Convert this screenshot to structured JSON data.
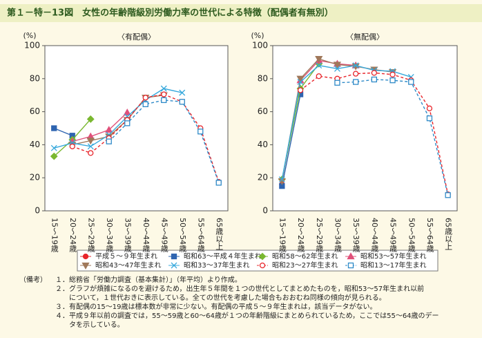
{
  "header": {
    "title": "第１－特－13図　女性の年齢階級別労働力率の世代による特徴（配偶者有無別）"
  },
  "chart_data": [
    {
      "type": "line",
      "title": "〈有配偶〉",
      "y_label": "(%)",
      "categories": [
        "15～19歳",
        "20～24歳",
        "25～29歳",
        "30～34歳",
        "35～39歳",
        "40～44歳",
        "45～49歳",
        "50～54歳",
        "55～64歳",
        "65歳以上"
      ],
      "ylim": [
        0,
        100
      ],
      "yticks": [
        0,
        20,
        40,
        60,
        80,
        100
      ],
      "series": [
        {
          "name": "平成５～９年生まれ",
          "color": "#e8242a",
          "marker": "dot",
          "dash": false,
          "values": [
            null,
            null,
            null,
            null,
            null,
            null,
            null,
            null,
            null,
            null
          ]
        },
        {
          "name": "昭和63～平成４年生まれ",
          "color": "#2e64b0",
          "marker": "square",
          "dash": false,
          "values": [
            50,
            45.5,
            null,
            null,
            null,
            null,
            null,
            null,
            null,
            null
          ]
        },
        {
          "name": "昭和58～62年生まれ",
          "color": "#7ab830",
          "marker": "diamond",
          "dash": false,
          "values": [
            33,
            43,
            55.5,
            null,
            null,
            null,
            null,
            null,
            null,
            null
          ]
        },
        {
          "name": "昭和53～57年生まれ",
          "color": "#e0507a",
          "marker": "triangle",
          "dash": false,
          "values": [
            null,
            42,
            45,
            49,
            59.5,
            null,
            null,
            null,
            null,
            null
          ]
        },
        {
          "name": "昭和43～47年生まれ",
          "color": "#a0785a",
          "marker": "triangle-down",
          "dash": false,
          "values": [
            null,
            40,
            42.5,
            45,
            55,
            68.5,
            70,
            null,
            null,
            null
          ]
        },
        {
          "name": "昭和33～37年生まれ",
          "color": "#36a8dc",
          "marker": "x",
          "dash": false,
          "values": [
            38,
            41,
            39,
            46,
            57,
            67,
            74,
            71.5,
            null,
            null
          ]
        },
        {
          "name": "昭和23～27年生まれ",
          "color": "#e8242a",
          "marker": "open-circle",
          "dash": true,
          "values": [
            null,
            39,
            35,
            44,
            55,
            68.5,
            70.5,
            66,
            50,
            17.5
          ]
        },
        {
          "name": "昭和13～17年生まれ",
          "color": "#2e8ac8",
          "marker": "open-square",
          "dash": true,
          "values": [
            null,
            null,
            null,
            42,
            53,
            64.5,
            67,
            66,
            48,
            17
          ]
        }
      ]
    },
    {
      "type": "line",
      "title": "〈無配偶〉",
      "y_label": "(%)",
      "categories": [
        "15～19歳",
        "20～24歳",
        "25～29歳",
        "30～34歳",
        "35～39歳",
        "40～44歳",
        "45～49歳",
        "50～54歳",
        "55～64歳",
        "65歳以上"
      ],
      "ylim": [
        0,
        100
      ],
      "yticks": [
        0,
        20,
        40,
        60,
        80,
        100
      ],
      "series": [
        {
          "values": [
            16,
            null,
            null,
            null,
            null,
            null,
            null,
            null,
            null,
            null
          ]
        },
        {
          "values": [
            15,
            70.5,
            null,
            null,
            null,
            null,
            null,
            null,
            null,
            null
          ]
        },
        {
          "values": [
            19,
            74,
            89,
            null,
            null,
            null,
            null,
            null,
            null,
            null
          ]
        },
        {
          "values": [
            null,
            79,
            91,
            89,
            88,
            null,
            null,
            null,
            null,
            null
          ]
        },
        {
          "values": [
            18,
            80,
            92,
            88.5,
            87.5,
            85.5,
            84,
            null,
            null,
            null
          ]
        },
        {
          "values": [
            19,
            78,
            88,
            86,
            88,
            85,
            84.5,
            81,
            null,
            null
          ]
        },
        {
          "values": [
            null,
            73,
            81.5,
            80,
            83,
            83.5,
            82.5,
            79,
            62,
            10
          ]
        },
        {
          "values": [
            null,
            null,
            null,
            77.5,
            78,
            79.5,
            79,
            78,
            56,
            9.5
          ]
        }
      ]
    }
  ],
  "notes": {
    "label": "（備考）",
    "items": [
      "１．総務省「労働力調査（基本集計）」（年平均）より作成。",
      "２．グラフが煩雑になるのを避けるため，出生年５年間を１つの世代としてまとめたものを，昭和53～57年生まれ以前",
      "　　について，１世代おきに表示している。全ての世代を考慮した場合もおおむね同様の傾向が見られる。",
      "３．有配偶の15～19歳は標本数が非常に少ない。有配偶の平成５～９年生まれは，該当データがない。",
      "４．平成９年以前の調査では，55～59歳と60～64歳が１つの年齢階級にまとめられているため，ここでは55～64歳のデー",
      "　　タを示している。"
    ]
  }
}
